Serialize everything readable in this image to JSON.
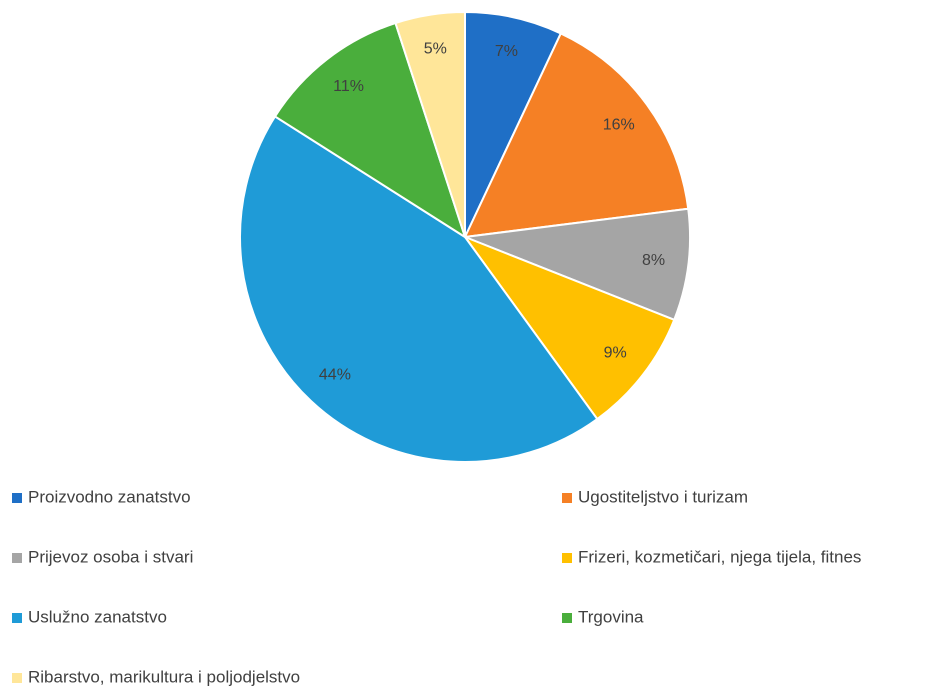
{
  "chart_data": {
    "type": "pie",
    "categories": [
      "Proizvodno zanatstvo",
      "Ugostiteljstvo i turizam",
      "Prijevoz osoba i stvari",
      "Frizeri, kozmetičari, njega tijela, fitnes",
      "Uslužno zanatstvo",
      "Trgovina",
      "Ribarstvo, marikultura i poljodjelstvo"
    ],
    "values": [
      7,
      16,
      8,
      9,
      44,
      11,
      5
    ],
    "value_labels": [
      "7%",
      "16%",
      "8%",
      "9%",
      "44%",
      "11%",
      "5%"
    ],
    "colors": [
      "#1f6fc6",
      "#f58025",
      "#a5a5a5",
      "#ffc000",
      "#1f9bd7",
      "#4aae3c",
      "#ffe699"
    ],
    "legend": "bottom"
  }
}
